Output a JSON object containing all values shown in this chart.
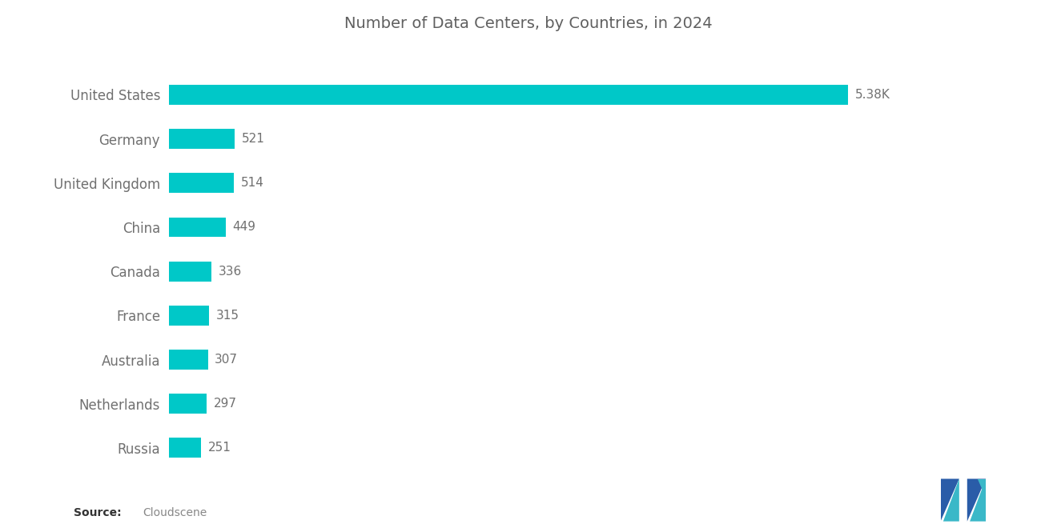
{
  "title": "Number of Data Centers, by Countries, in 2024",
  "categories": [
    "United States",
    "Germany",
    "United Kingdom",
    "China",
    "Canada",
    "France",
    "Australia",
    "Netherlands",
    "Russia"
  ],
  "values": [
    5380,
    521,
    514,
    449,
    336,
    315,
    307,
    297,
    251
  ],
  "labels": [
    "5.38K",
    "521",
    "514",
    "449",
    "336",
    "315",
    "307",
    "297",
    "251"
  ],
  "bar_color": "#00C8C8",
  "background_color": "#ffffff",
  "title_color": "#606060",
  "label_color": "#707070",
  "yticklabel_color": "#707070",
  "xlim": [
    0,
    6200
  ],
  "bar_height": 0.45,
  "title_fontsize": 14,
  "label_fontsize": 11,
  "tick_fontsize": 12,
  "logo_colors": {
    "left_dark": "#2a5ca8",
    "left_light": "#3ab8c8",
    "right_dark": "#2a5ca8",
    "right_light": "#3ab8c8"
  }
}
